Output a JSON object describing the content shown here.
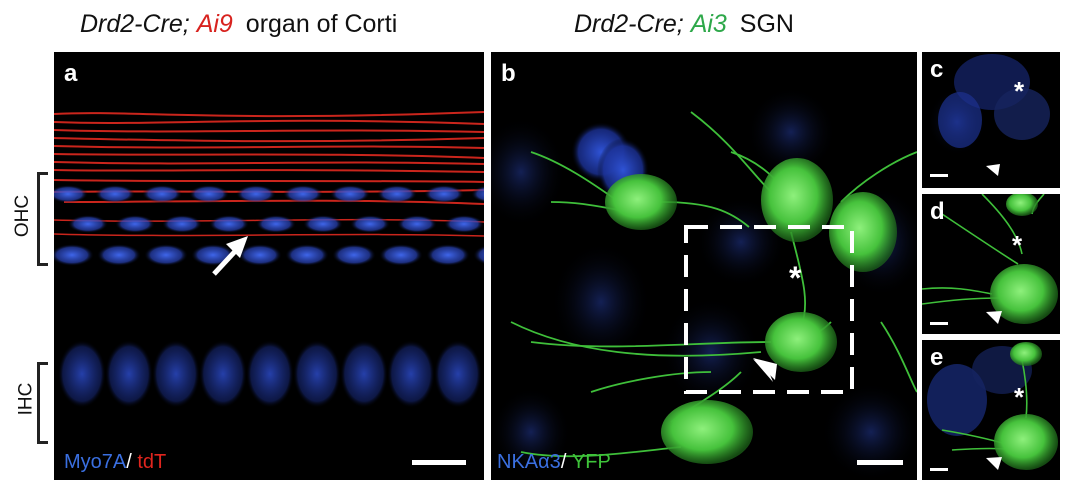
{
  "titles": {
    "left": {
      "cre": "Drd2-Cre;",
      "reporter": "Ai9",
      "rest": "organ of Corti"
    },
    "right": {
      "cre": "Drd2-Cre;",
      "reporter": "Ai3",
      "rest": "SGN"
    }
  },
  "panels": {
    "a": "a",
    "b": "b",
    "c": "c",
    "d": "d",
    "e": "e"
  },
  "side_labels": {
    "ohc": "OHC",
    "ihc": "IHC"
  },
  "legend_a": {
    "marker1": "Myo7A",
    "sep": "/ ",
    "marker2": "tdT"
  },
  "legend_b": {
    "marker1": "NKAα3",
    "sep": "/ ",
    "marker2": "YFP"
  },
  "asterisk": "*",
  "colors": {
    "blue": "#3a5bd8",
    "red": "#e0251e",
    "green": "#3ec43a",
    "title_red": "#d8231f",
    "title_green": "#2ea84a"
  }
}
